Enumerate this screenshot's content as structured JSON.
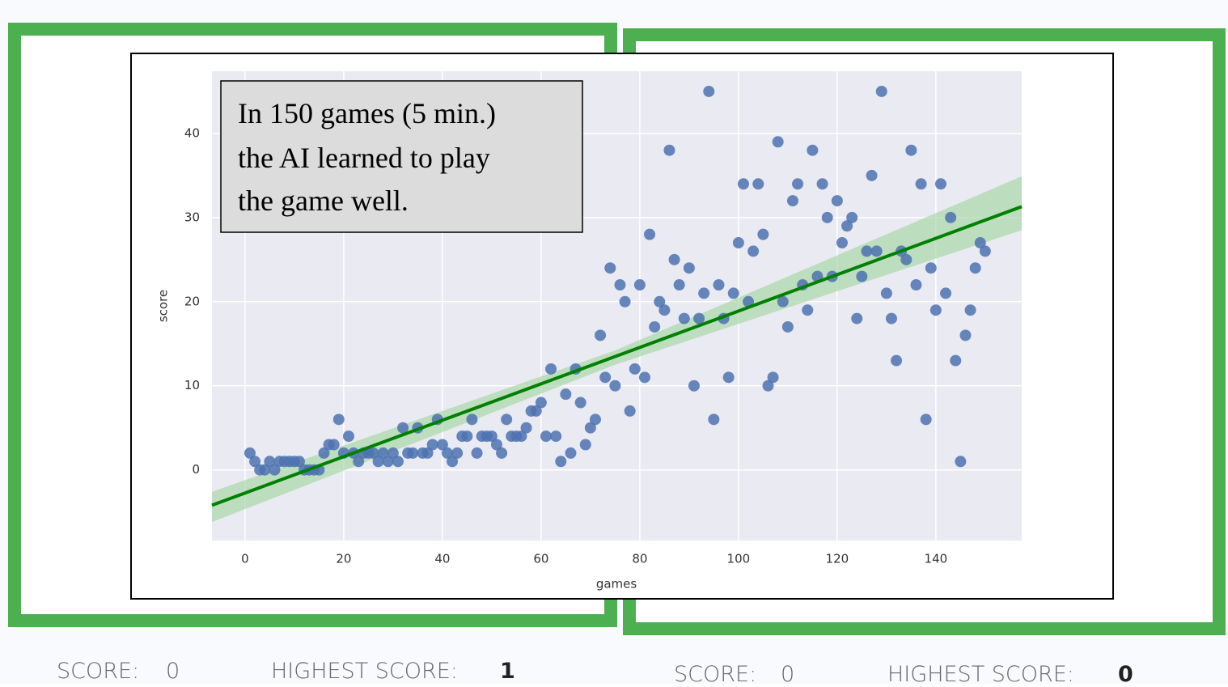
{
  "chart_data": {
    "type": "scatter",
    "x_label": "games",
    "y_label": "score",
    "annotation": [
      "In 150 games (5 min.)",
      "the AI learned to play",
      "the game well."
    ],
    "xlim": [
      -6.7,
      157.4
    ],
    "ylim": [
      -8.4,
      47.4
    ],
    "xticks": [
      0,
      20,
      40,
      60,
      80,
      100,
      120,
      140
    ],
    "yticks": [
      0,
      10,
      20,
      30,
      40
    ],
    "grid": true,
    "color": "#4c72b0",
    "x": [
      1,
      2,
      3,
      4,
      5,
      6,
      7,
      8,
      9,
      10,
      11,
      12,
      13,
      14,
      15,
      16,
      17,
      18,
      19,
      20,
      21,
      22,
      23,
      24,
      25,
      26,
      27,
      28,
      29,
      30,
      31,
      32,
      33,
      34,
      35,
      36,
      37,
      38,
      39,
      40,
      41,
      42,
      43,
      44,
      45,
      46,
      47,
      48,
      49,
      50,
      51,
      52,
      53,
      54,
      55,
      56,
      57,
      58,
      59,
      60,
      61,
      62,
      63,
      64,
      65,
      66,
      67,
      68,
      69,
      70,
      71,
      72,
      73,
      74,
      75,
      76,
      77,
      78,
      79,
      80,
      81,
      82,
      83,
      84,
      85,
      86,
      87,
      88,
      89,
      90,
      91,
      92,
      93,
      94,
      95,
      96,
      97,
      98,
      99,
      100,
      101,
      102,
      103,
      104,
      105,
      106,
      107,
      108,
      109,
      110,
      111,
      112,
      113,
      114,
      115,
      116,
      117,
      118,
      119,
      120,
      121,
      122,
      123,
      124,
      125,
      126,
      127,
      128,
      129,
      130,
      131,
      132,
      133,
      134,
      135,
      136,
      137,
      138,
      139,
      140,
      141,
      142,
      143,
      144,
      145,
      146,
      147,
      148,
      149,
      150
    ],
    "values": [
      2,
      1,
      0,
      0,
      1,
      0,
      1,
      1,
      1,
      1,
      1,
      0,
      0,
      0,
      0,
      2,
      3,
      3,
      6,
      2,
      4,
      2,
      1,
      2,
      2,
      2,
      1,
      2,
      1,
      2,
      1,
      5,
      2,
      2,
      5,
      2,
      2,
      3,
      6,
      3,
      2,
      1,
      2,
      4,
      4,
      6,
      2,
      4,
      4,
      4,
      3,
      2,
      6,
      4,
      4,
      4,
      5,
      7,
      7,
      8,
      4,
      12,
      4,
      1,
      9,
      2,
      12,
      8,
      3,
      5,
      6,
      16,
      11,
      24,
      10,
      22,
      20,
      7,
      12,
      22,
      11,
      28,
      17,
      20,
      19,
      38,
      25,
      22,
      18,
      24,
      10,
      18,
      21,
      45,
      6,
      22,
      18,
      11,
      21,
      27,
      34,
      20,
      26,
      34,
      28,
      10,
      11,
      39,
      20,
      17,
      32,
      34,
      22,
      19,
      38,
      23,
      34,
      30,
      23,
      32,
      27,
      29,
      30,
      18,
      23,
      26,
      35,
      26,
      45,
      21,
      18,
      13,
      26,
      25,
      38,
      22,
      34,
      6,
      24,
      19,
      34,
      21,
      30,
      13,
      1,
      16,
      19,
      24,
      27,
      26
    ],
    "trend": {
      "color": "#008000",
      "x": [
        -6.7,
        157.4
      ],
      "values": [
        -4.2,
        31.3
      ]
    },
    "band": {
      "color": "#a8d8a8",
      "x": [
        -6.7,
        75,
        157.4
      ],
      "lower": [
        -6.2,
        12.5,
        28.5
      ],
      "upper": [
        -2.6,
        14.2,
        34.9
      ]
    }
  },
  "panels": [
    {
      "score_label": "SCORE:",
      "score": "0",
      "highest_label": "HIGHEST SCORE:",
      "highest": "1"
    },
    {
      "score_label": "SCORE:",
      "score": "0",
      "highest_label": "HIGHEST SCORE:",
      "highest": "0"
    }
  ]
}
